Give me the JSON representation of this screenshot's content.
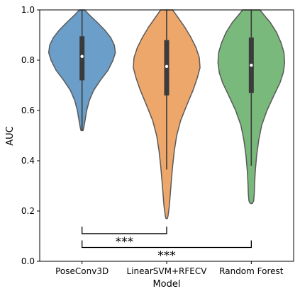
{
  "chart_data": {
    "type": "violin",
    "title": "",
    "xlabel": "Model",
    "ylabel": "AUC",
    "ylim": [
      0.0,
      1.0
    ],
    "yticks": [
      "0.0",
      "0.2",
      "0.4",
      "0.6",
      "0.8",
      "1.0"
    ],
    "grid": false,
    "categories": [
      "PoseConv3D",
      "LinearSVM+RFECV",
      "Random Forest"
    ],
    "colors": [
      "#6b9ec8",
      "#eea76a",
      "#79b97b"
    ],
    "violins": [
      {
        "category": "PoseConv3D",
        "min": 0.52,
        "q1": 0.72,
        "median": 0.815,
        "q3": 0.895,
        "max": 1.0,
        "profile": [
          [
            0.52,
            0.03
          ],
          [
            0.53,
            0.05
          ],
          [
            0.56,
            0.09
          ],
          [
            0.6,
            0.14
          ],
          [
            0.64,
            0.22
          ],
          [
            0.68,
            0.35
          ],
          [
            0.72,
            0.55
          ],
          [
            0.76,
            0.78
          ],
          [
            0.8,
            0.93
          ],
          [
            0.83,
            1.0
          ],
          [
            0.86,
            0.97
          ],
          [
            0.89,
            0.86
          ],
          [
            0.92,
            0.68
          ],
          [
            0.95,
            0.46
          ],
          [
            0.98,
            0.22
          ],
          [
            1.0,
            0.08
          ]
        ]
      },
      {
        "category": "LinearSVM+RFECV",
        "min": 0.365,
        "q1": 0.66,
        "median": 0.775,
        "q3": 0.88,
        "max": 1.0,
        "profile": [
          [
            0.17,
            0.02
          ],
          [
            0.18,
            0.04
          ],
          [
            0.22,
            0.08
          ],
          [
            0.27,
            0.11
          ],
          [
            0.32,
            0.14
          ],
          [
            0.38,
            0.18
          ],
          [
            0.44,
            0.23
          ],
          [
            0.5,
            0.3
          ],
          [
            0.56,
            0.42
          ],
          [
            0.62,
            0.6
          ],
          [
            0.68,
            0.79
          ],
          [
            0.73,
            0.92
          ],
          [
            0.77,
            1.0
          ],
          [
            0.81,
            0.98
          ],
          [
            0.85,
            0.88
          ],
          [
            0.89,
            0.73
          ],
          [
            0.93,
            0.55
          ],
          [
            0.97,
            0.34
          ],
          [
            1.0,
            0.18
          ]
        ]
      },
      {
        "category": "Random Forest",
        "min": 0.38,
        "q1": 0.67,
        "median": 0.78,
        "q3": 0.89,
        "max": 1.0,
        "profile": [
          [
            0.23,
            0.03
          ],
          [
            0.24,
            0.07
          ],
          [
            0.27,
            0.09
          ],
          [
            0.31,
            0.1
          ],
          [
            0.36,
            0.12
          ],
          [
            0.42,
            0.16
          ],
          [
            0.48,
            0.22
          ],
          [
            0.54,
            0.31
          ],
          [
            0.6,
            0.47
          ],
          [
            0.66,
            0.68
          ],
          [
            0.71,
            0.86
          ],
          [
            0.75,
            0.96
          ],
          [
            0.79,
            1.0
          ],
          [
            0.83,
            0.98
          ],
          [
            0.87,
            0.89
          ],
          [
            0.91,
            0.76
          ],
          [
            0.95,
            0.57
          ],
          [
            0.98,
            0.38
          ],
          [
            1.0,
            0.26
          ]
        ]
      }
    ],
    "significance": [
      {
        "from": "PoseConv3D",
        "to": "LinearSVM+RFECV",
        "y": 0.11,
        "label": "***"
      },
      {
        "from": "PoseConv3D",
        "to": "Random Forest",
        "y": 0.055,
        "label": "***"
      }
    ]
  }
}
